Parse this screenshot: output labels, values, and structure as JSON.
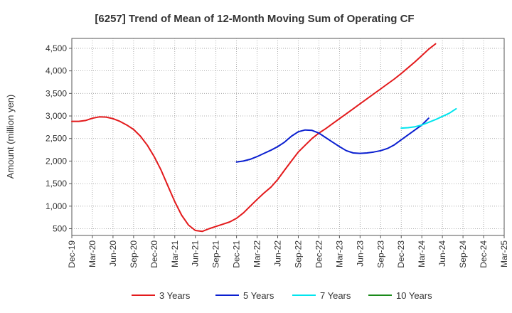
{
  "chart_data": {
    "type": "line",
    "title": "[6257]  Trend of Mean of 12-Month Moving Sum of Operating CF",
    "xlabel": "",
    "ylabel": "Amount (million yen)",
    "ylim": [
      350,
      4720
    ],
    "yticks": [
      500,
      1000,
      1500,
      2000,
      2500,
      3000,
      3500,
      4000,
      4500
    ],
    "ytick_labels": [
      "500",
      "1,000",
      "1,500",
      "2,000",
      "2,500",
      "3,000",
      "3,500",
      "4,000",
      "4,500"
    ],
    "xtick_labels": [
      "Dec-19",
      "Mar-20",
      "Jun-20",
      "Sep-20",
      "Dec-20",
      "Mar-21",
      "Jun-21",
      "Sep-21",
      "Dec-21",
      "Mar-22",
      "Jun-22",
      "Sep-22",
      "Dec-22",
      "Mar-23",
      "Jun-23",
      "Sep-23",
      "Dec-23",
      "Mar-24",
      "Jun-24",
      "Sep-24",
      "Dec-24",
      "Mar-25"
    ],
    "grid": true,
    "legend_position": "bottom",
    "series": [
      {
        "name": "3 Years",
        "color": "#e31a1c",
        "start_index": 0,
        "values": [
          2880,
          2880,
          2900,
          2950,
          2980,
          2975,
          2940,
          2880,
          2800,
          2700,
          2550,
          2350,
          2100,
          1800,
          1450,
          1100,
          800,
          580,
          460,
          440,
          500,
          550,
          600,
          650,
          730,
          850,
          1000,
          1150,
          1290,
          1420,
          1590,
          1800,
          2000,
          2200,
          2350,
          2500,
          2620,
          2720,
          2830,
          2940,
          3050,
          3160,
          3270,
          3380,
          3490,
          3600,
          3710,
          3820,
          3940,
          4070,
          4200,
          4340,
          4480,
          4600
        ]
      },
      {
        "name": "5 Years",
        "color": "#0a1fd0",
        "start_index": 24,
        "values": [
          1980,
          2000,
          2040,
          2100,
          2170,
          2240,
          2320,
          2420,
          2550,
          2650,
          2690,
          2680,
          2620,
          2520,
          2420,
          2320,
          2230,
          2180,
          2170,
          2180,
          2200,
          2230,
          2280,
          2360,
          2470,
          2580,
          2690,
          2800,
          2950
        ]
      },
      {
        "name": "7 Years",
        "color": "#00e5ee",
        "start_index": 48,
        "values": [
          2730,
          2740,
          2760,
          2800,
          2860,
          2920,
          2990,
          3060,
          3160
        ]
      },
      {
        "name": "10 Years",
        "color": "#1a8a1a",
        "start_index": 0,
        "values": []
      }
    ]
  }
}
